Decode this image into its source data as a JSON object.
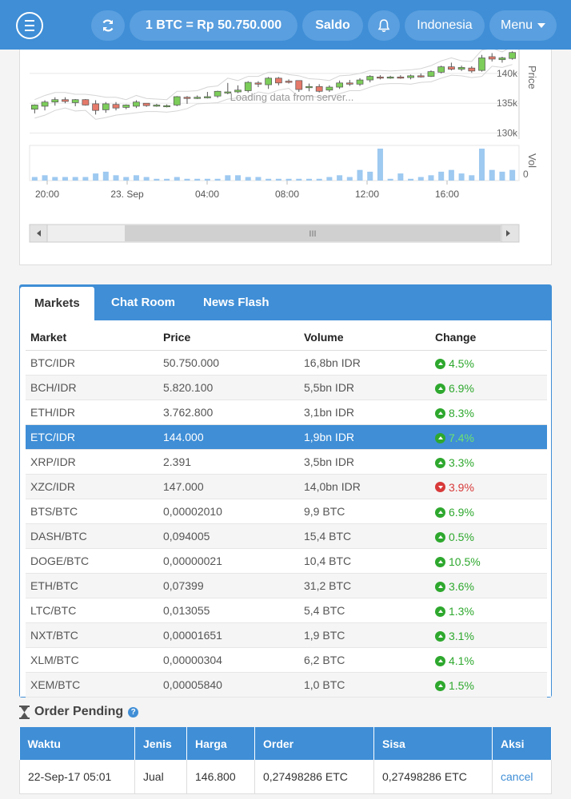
{
  "header": {
    "refresh_icon": "refresh-icon",
    "rate_label": "1 BTC = Rp 50.750.000",
    "saldo_label": "Saldo",
    "bell_icon": "bell-icon",
    "language_label": "Indonesia",
    "menu_label": "Menu"
  },
  "chart": {
    "loading_text": "Loading data from server...",
    "price_axis_label": "Price",
    "volume_axis_label": "Vol",
    "price_ticks": [
      "140k",
      "135k",
      "130k"
    ],
    "volume_tick": "0",
    "time_ticks": [
      "20:00",
      "23. Sep",
      "04:00",
      "08:00",
      "12:00",
      "16:00"
    ],
    "scrollbar_grip": "III"
  },
  "chart_data": {
    "type": "candlestick",
    "price_ticks": [
      130000,
      135000,
      140000
    ],
    "ylim": [
      129000,
      144000
    ],
    "time_ticks": [
      "20:00",
      "23. Sep",
      "04:00",
      "08:00",
      "12:00",
      "16:00"
    ],
    "candles": [
      {
        "o": 134000,
        "h": 134800,
        "l": 133300,
        "c": 134700
      },
      {
        "o": 134500,
        "h": 135500,
        "l": 133800,
        "c": 135200
      },
      {
        "o": 135200,
        "h": 136000,
        "l": 134600,
        "c": 135600
      },
      {
        "o": 135600,
        "h": 136000,
        "l": 135000,
        "c": 135300
      },
      {
        "o": 135100,
        "h": 135700,
        "l": 134500,
        "c": 135600
      },
      {
        "o": 135600,
        "h": 135700,
        "l": 134600,
        "c": 134700
      },
      {
        "o": 134900,
        "h": 135500,
        "l": 133100,
        "c": 133800
      },
      {
        "o": 133900,
        "h": 135200,
        "l": 133400,
        "c": 134900
      },
      {
        "o": 134800,
        "h": 135200,
        "l": 133800,
        "c": 134200
      },
      {
        "o": 134300,
        "h": 134800,
        "l": 134000,
        "c": 134700
      },
      {
        "o": 134500,
        "h": 135500,
        "l": 134200,
        "c": 135200
      },
      {
        "o": 135000,
        "h": 135000,
        "l": 134400,
        "c": 134600
      },
      {
        "o": 134600,
        "h": 134900,
        "l": 134400,
        "c": 134700
      },
      {
        "o": 134600,
        "h": 134800,
        "l": 134300,
        "c": 134600
      },
      {
        "o": 134700,
        "h": 136200,
        "l": 134500,
        "c": 136100
      },
      {
        "o": 136000,
        "h": 136200,
        "l": 134900,
        "c": 135900
      },
      {
        "o": 135900,
        "h": 136300,
        "l": 135700,
        "c": 136000
      },
      {
        "o": 136000,
        "h": 136900,
        "l": 135800,
        "c": 136100
      },
      {
        "o": 136200,
        "h": 137100,
        "l": 135900,
        "c": 137000
      },
      {
        "o": 136800,
        "h": 138400,
        "l": 136500,
        "c": 136900
      },
      {
        "o": 136900,
        "h": 138000,
        "l": 136700,
        "c": 137200
      },
      {
        "o": 137100,
        "h": 138700,
        "l": 136800,
        "c": 138500
      },
      {
        "o": 138400,
        "h": 138700,
        "l": 137700,
        "c": 138200
      },
      {
        "o": 138100,
        "h": 139400,
        "l": 137400,
        "c": 139200
      },
      {
        "o": 139200,
        "h": 139400,
        "l": 138000,
        "c": 138400
      },
      {
        "o": 138700,
        "h": 139000,
        "l": 138300,
        "c": 138600
      },
      {
        "o": 138800,
        "h": 138800,
        "l": 136900,
        "c": 137300
      },
      {
        "o": 137600,
        "h": 138300,
        "l": 137000,
        "c": 137800
      },
      {
        "o": 137800,
        "h": 138200,
        "l": 136800,
        "c": 137000
      },
      {
        "o": 137200,
        "h": 138000,
        "l": 136900,
        "c": 137700
      },
      {
        "o": 137700,
        "h": 138800,
        "l": 137400,
        "c": 138400
      },
      {
        "o": 138400,
        "h": 138900,
        "l": 137900,
        "c": 138200
      },
      {
        "o": 138200,
        "h": 139200,
        "l": 137900,
        "c": 138900
      },
      {
        "o": 138900,
        "h": 139700,
        "l": 138500,
        "c": 139500
      },
      {
        "o": 139400,
        "h": 139700,
        "l": 139000,
        "c": 139300
      },
      {
        "o": 139400,
        "h": 139600,
        "l": 139100,
        "c": 139400
      },
      {
        "o": 139400,
        "h": 139700,
        "l": 139100,
        "c": 139300
      },
      {
        "o": 139300,
        "h": 139800,
        "l": 139000,
        "c": 139600
      },
      {
        "o": 139600,
        "h": 140000,
        "l": 139300,
        "c": 139500
      },
      {
        "o": 139500,
        "h": 140500,
        "l": 139400,
        "c": 140300
      },
      {
        "o": 140200,
        "h": 141300,
        "l": 140000,
        "c": 141100
      },
      {
        "o": 141100,
        "h": 141800,
        "l": 140500,
        "c": 140700
      },
      {
        "o": 140700,
        "h": 141300,
        "l": 140400,
        "c": 141000
      },
      {
        "o": 140900,
        "h": 141200,
        "l": 140100,
        "c": 140400
      },
      {
        "o": 140500,
        "h": 143100,
        "l": 140300,
        "c": 142600
      },
      {
        "o": 142800,
        "h": 143400,
        "l": 142000,
        "c": 142400
      },
      {
        "o": 142300,
        "h": 142800,
        "l": 141800,
        "c": 142600
      },
      {
        "o": 142500,
        "h": 143700,
        "l": 142300,
        "c": 143500
      }
    ],
    "volume": [
      2,
      3,
      2,
      2,
      2,
      2,
      4,
      5,
      3,
      2,
      3,
      2,
      1,
      1,
      2,
      1,
      1,
      1,
      1,
      3,
      3,
      2,
      2,
      1,
      1,
      1,
      1,
      1,
      1,
      2,
      3,
      2,
      6,
      5,
      18,
      1,
      4,
      1,
      2,
      3,
      5,
      6,
      4,
      3,
      18,
      6,
      5,
      6
    ]
  },
  "tabs": [
    {
      "label": "Markets"
    },
    {
      "label": "Chat Room"
    },
    {
      "label": "News Flash"
    }
  ],
  "markets": {
    "headers": [
      "Market",
      "Price",
      "Volume",
      "Change"
    ],
    "rows": [
      {
        "market": "BTC/IDR",
        "price": "50.750.000",
        "volume": "16,8bn IDR",
        "change": "4.5%",
        "dir": "up"
      },
      {
        "market": "BCH/IDR",
        "price": "5.820.100",
        "volume": "5,5bn IDR",
        "change": "6.9%",
        "dir": "up"
      },
      {
        "market": "ETH/IDR",
        "price": "3.762.800",
        "volume": "3,1bn IDR",
        "change": "8.3%",
        "dir": "up"
      },
      {
        "market": "ETC/IDR",
        "price": "144.000",
        "volume": "1,9bn IDR",
        "change": "7.4%",
        "dir": "up",
        "selected": true
      },
      {
        "market": "XRP/IDR",
        "price": "2.391",
        "volume": "3,5bn IDR",
        "change": "3.3%",
        "dir": "up"
      },
      {
        "market": "XZC/IDR",
        "price": "147.000",
        "volume": "14,0bn IDR",
        "change": "3.9%",
        "dir": "down"
      },
      {
        "market": "BTS/BTC",
        "price": "0,00002010",
        "volume": "9,9 BTC",
        "change": "6.9%",
        "dir": "up"
      },
      {
        "market": "DASH/BTC",
        "price": "0,094005",
        "volume": "15,4 BTC",
        "change": "0.5%",
        "dir": "up"
      },
      {
        "market": "DOGE/BTC",
        "price": "0,00000021",
        "volume": "10,4 BTC",
        "change": "10.5%",
        "dir": "up"
      },
      {
        "market": "ETH/BTC",
        "price": "0,07399",
        "volume": "31,2 BTC",
        "change": "3.6%",
        "dir": "up"
      },
      {
        "market": "LTC/BTC",
        "price": "0,013055",
        "volume": "5,4 BTC",
        "change": "1.3%",
        "dir": "up"
      },
      {
        "market": "NXT/BTC",
        "price": "0,00001651",
        "volume": "1,9 BTC",
        "change": "3.1%",
        "dir": "up"
      },
      {
        "market": "XLM/BTC",
        "price": "0,00000304",
        "volume": "6,2 BTC",
        "change": "4.1%",
        "dir": "up"
      },
      {
        "market": "XEM/BTC",
        "price": "0,00005840",
        "volume": "1,0 BTC",
        "change": "1.5%",
        "dir": "up"
      }
    ]
  },
  "order_pending": {
    "title": "Order Pending",
    "help_glyph": "?",
    "headers": [
      "Waktu",
      "Jenis",
      "Harga",
      "Order",
      "Sisa",
      "Aksi"
    ],
    "rows": [
      {
        "waktu": "22-Sep-17 05:01",
        "jenis": "Jual",
        "harga": "146.800",
        "order": "0,27498286 ETC",
        "sisa": "0,27498286 ETC",
        "aksi": "cancel"
      }
    ]
  },
  "colors": {
    "primary": "#3f8ed6",
    "up": "#2ea82e",
    "down": "#d83a3a",
    "candle_up": "#7ccd5a",
    "candle_down": "#e57a6a",
    "volume": "#9ec9f0"
  }
}
